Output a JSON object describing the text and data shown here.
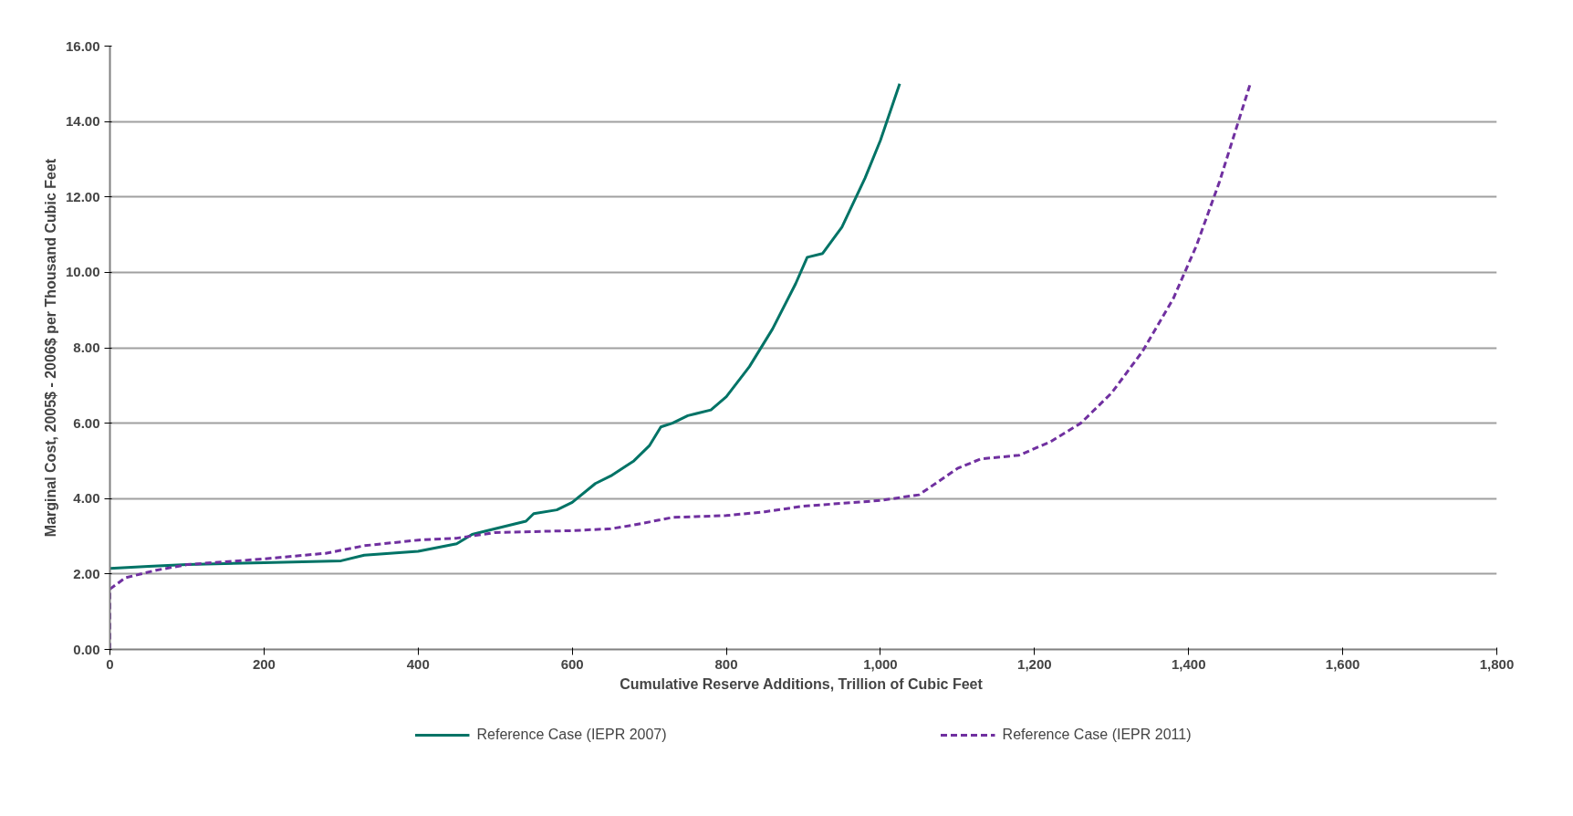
{
  "chart_data": {
    "type": "line",
    "xlabel": "Cumulative Reserve  Additions, Trillion of Cubic Feet",
    "ylabel": "Marginal Cost, 2005$ - 2006$ per Thousand Cubic Feet",
    "xlim": [
      0,
      1800
    ],
    "xticks": [
      {
        "value": 0,
        "label": "0"
      },
      {
        "value": 200,
        "label": "200"
      },
      {
        "value": 400,
        "label": "400"
      },
      {
        "value": 600,
        "label": "600"
      },
      {
        "value": 800,
        "label": "800"
      },
      {
        "value": 1000,
        "label": "1,000"
      },
      {
        "value": 1200,
        "label": "1,200"
      },
      {
        "value": 1400,
        "label": "1,400"
      },
      {
        "value": 1600,
        "label": "1,600"
      },
      {
        "value": 1800,
        "label": "1,800"
      }
    ],
    "ylim": [
      0,
      16
    ],
    "yticks": [
      {
        "value": 0,
        "label": "0.00"
      },
      {
        "value": 2,
        "label": "2.00"
      },
      {
        "value": 4,
        "label": "4.00"
      },
      {
        "value": 6,
        "label": "6.00"
      },
      {
        "value": 8,
        "label": "8.00"
      },
      {
        "value": 10,
        "label": "10.00"
      },
      {
        "value": 12,
        "label": "12.00"
      },
      {
        "value": 14,
        "label": "14.00"
      },
      {
        "value": 16,
        "label": "16.00"
      }
    ],
    "grid": "y",
    "legend": "bottom",
    "series": [
      {
        "name": "Reference Case (IEPR 2007)",
        "color": "#007366",
        "line_style": "solid",
        "x": [
          0,
          50,
          100,
          200,
          300,
          330,
          400,
          450,
          470,
          500,
          540,
          550,
          580,
          600,
          630,
          650,
          680,
          700,
          715,
          730,
          750,
          780,
          800,
          830,
          860,
          890,
          905,
          925,
          950,
          980,
          1000,
          1025
        ],
        "values": [
          2.15,
          2.2,
          2.25,
          2.3,
          2.35,
          2.5,
          2.6,
          2.8,
          3.05,
          3.2,
          3.4,
          3.6,
          3.7,
          3.9,
          4.4,
          4.6,
          5.0,
          5.4,
          5.9,
          6.0,
          6.2,
          6.35,
          6.7,
          7.5,
          8.5,
          9.7,
          10.4,
          10.5,
          11.2,
          12.5,
          13.5,
          15.0
        ]
      },
      {
        "name": "Reference Case (IEPR 2011)",
        "color": "#7030a0",
        "line_style": "dashed",
        "x": [
          0,
          0,
          20,
          60,
          100,
          200,
          280,
          330,
          400,
          450,
          500,
          600,
          650,
          680,
          730,
          800,
          850,
          900,
          1000,
          1050,
          1100,
          1130,
          1180,
          1220,
          1260,
          1300,
          1340,
          1380,
          1410,
          1440,
          1460,
          1480
        ],
        "values": [
          0,
          1.6,
          1.9,
          2.1,
          2.25,
          2.4,
          2.55,
          2.75,
          2.9,
          2.95,
          3.1,
          3.15,
          3.2,
          3.3,
          3.5,
          3.55,
          3.65,
          3.8,
          3.95,
          4.1,
          4.8,
          5.05,
          5.15,
          5.5,
          6.0,
          6.8,
          7.9,
          9.3,
          10.7,
          12.4,
          13.7,
          15.0
        ]
      }
    ]
  }
}
